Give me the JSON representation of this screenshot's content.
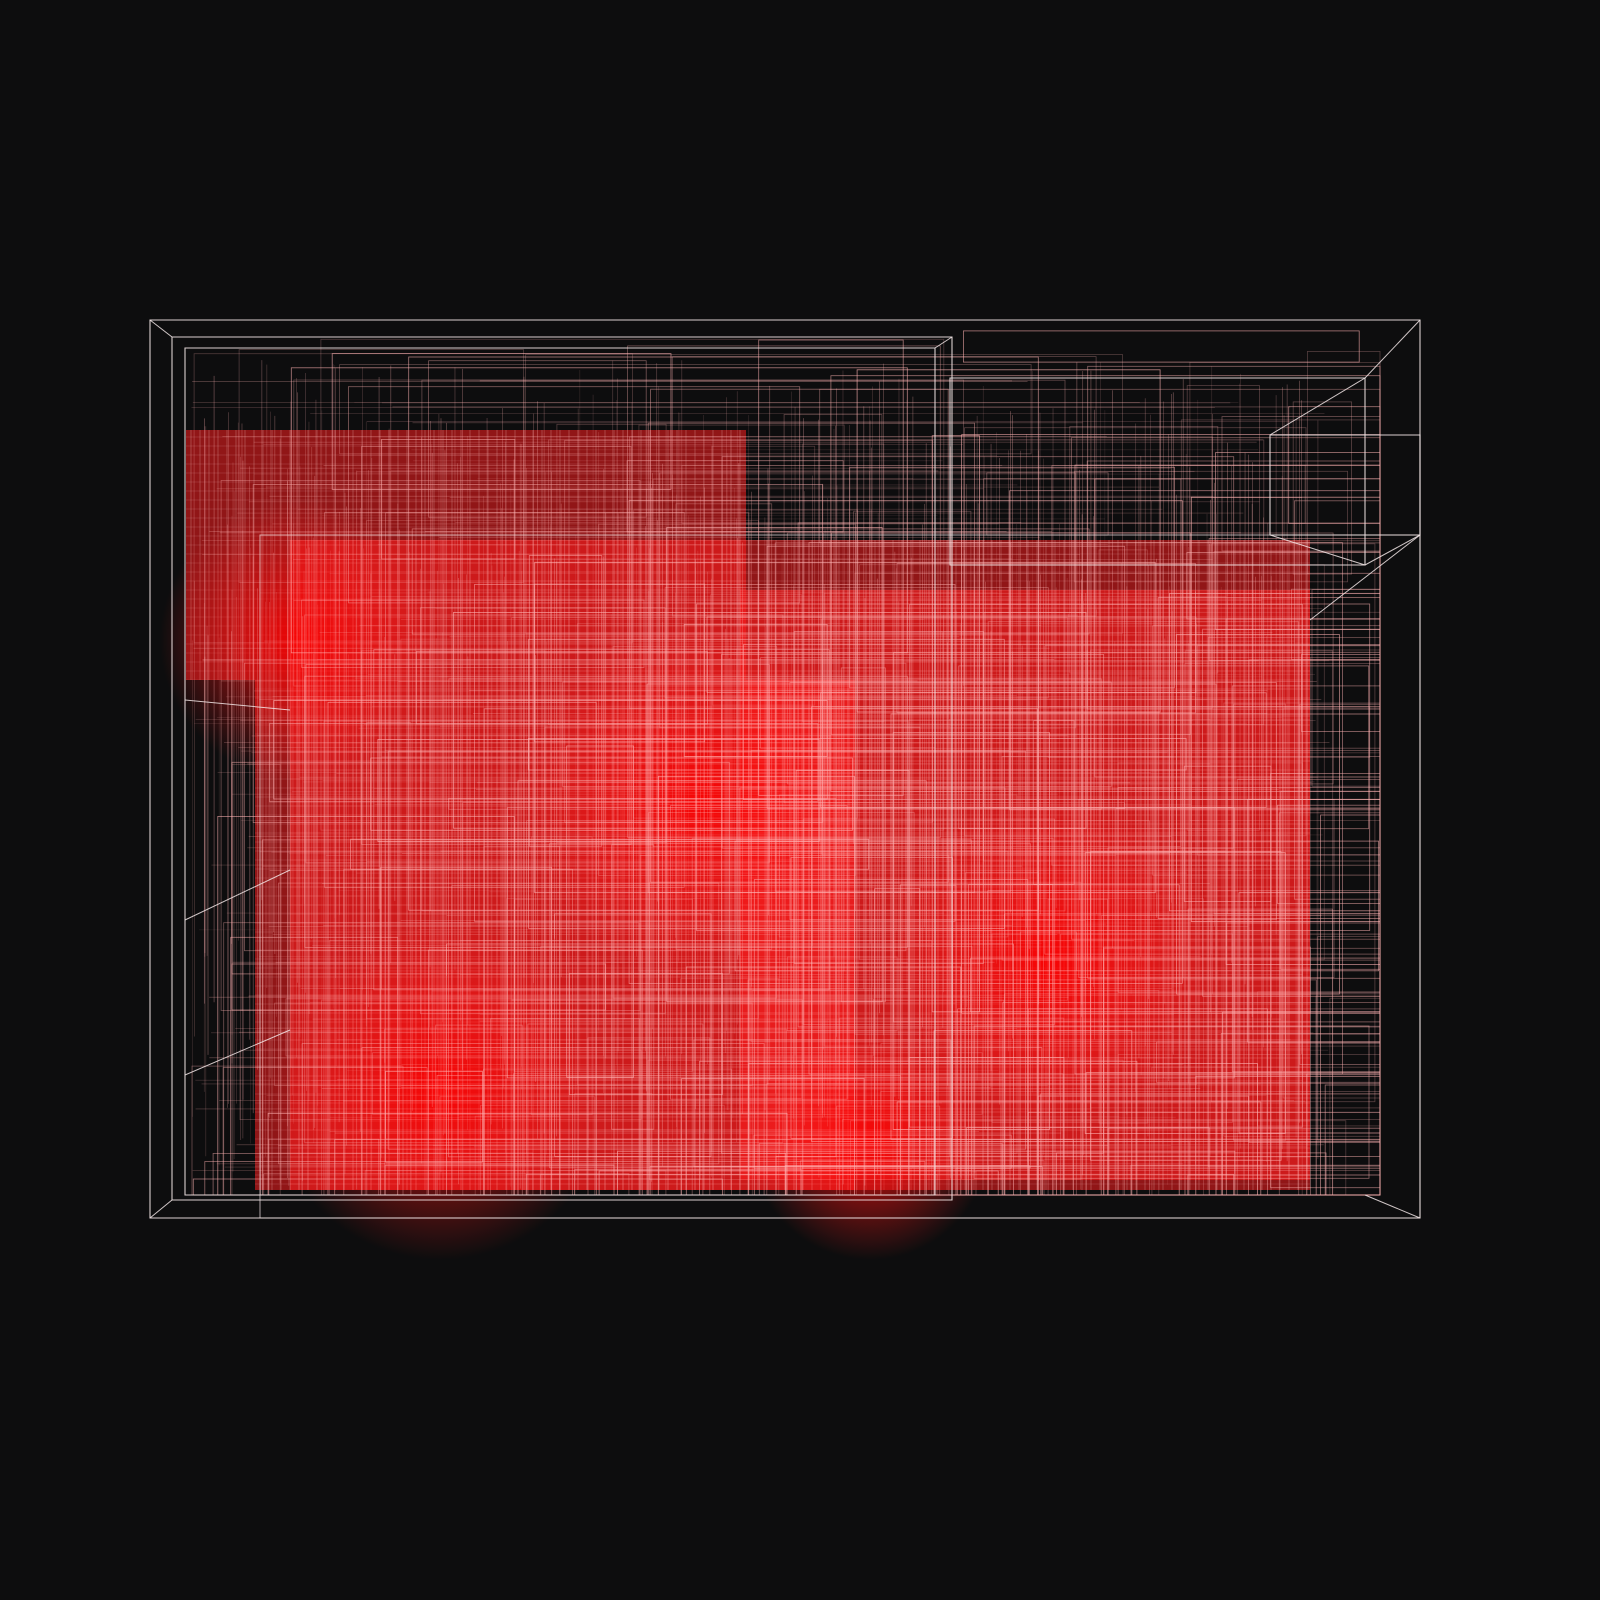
{
  "scene": {
    "description_free": true,
    "background_color": "#0d0d0e",
    "outline_color": "#f2e6e6",
    "fill_color": "#ff1f1f",
    "highlight_color": "#ffb3b3",
    "render_style": "wireframe-boxes-over-dense-red-fill"
  }
}
